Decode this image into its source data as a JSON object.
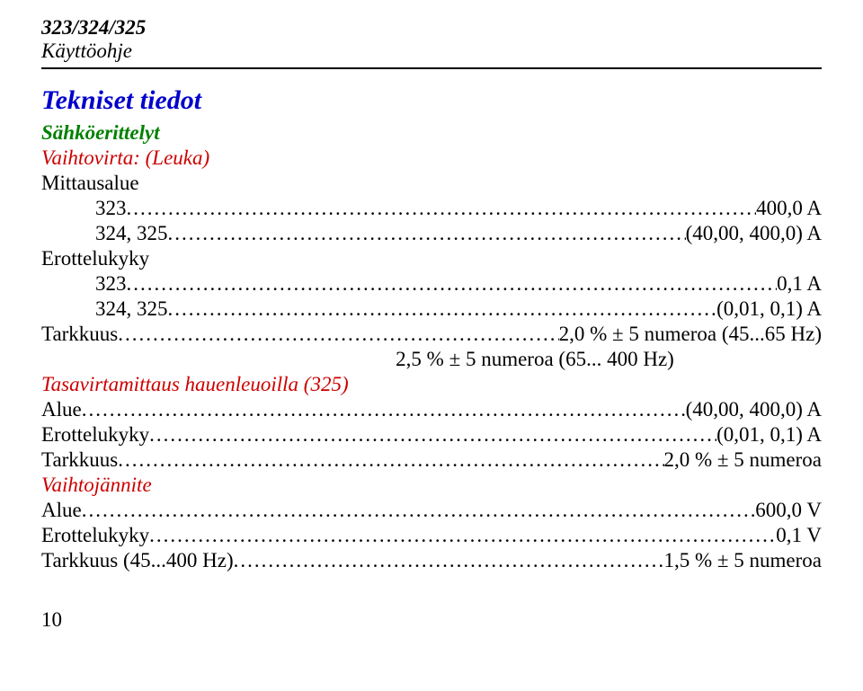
{
  "header": {
    "model": "323/324/325",
    "sub": "Käyttöohje"
  },
  "title": "Tekniset tiedot",
  "section1": {
    "heading": "Sähköerittelyt",
    "sub": "Vaihtovirta: (Leuka)",
    "meas_label": "Mittausalue",
    "r1_left": "323",
    "r1_right": "400,0 A",
    "r2_left": "324, 325",
    "r2_right": "(40,00, 400,0) A",
    "erot_label": "Erottelukyky",
    "r3_left": "323",
    "r3_right": "0,1 A",
    "r4_left": "324, 325",
    "r4_right": "(0,01, 0,1) A",
    "acc_left": "Tarkkuus",
    "acc_right": "2,0 % ± 5 numeroa (45...65 Hz)",
    "acc_note": "2,5 % ± 5 numeroa (65... 400 Hz)"
  },
  "section2": {
    "heading": "Tasavirtamittaus hauenleuoilla (325)",
    "r1_left": "Alue",
    "r1_right": "(40,00, 400,0) A",
    "r2_left": "Erottelukyky",
    "r2_right": "(0,01, 0,1) A",
    "r3_left": "Tarkkuus",
    "r3_right": "2,0 % ± 5 numeroa"
  },
  "section3": {
    "heading": "Vaihtojännite",
    "r1_left": "Alue",
    "r1_right": "600,0 V",
    "r2_left": "Erottelukyky",
    "r2_right": "0,1 V",
    "r3_left": "Tarkkuus (45...400 Hz)",
    "r3_right": "1,5 % ± 5 numeroa"
  },
  "pagenum": "10",
  "colors": {
    "blue": "#0000cc",
    "green": "#008000",
    "red": "#cc0000",
    "text": "#000000",
    "background": "#ffffff"
  }
}
